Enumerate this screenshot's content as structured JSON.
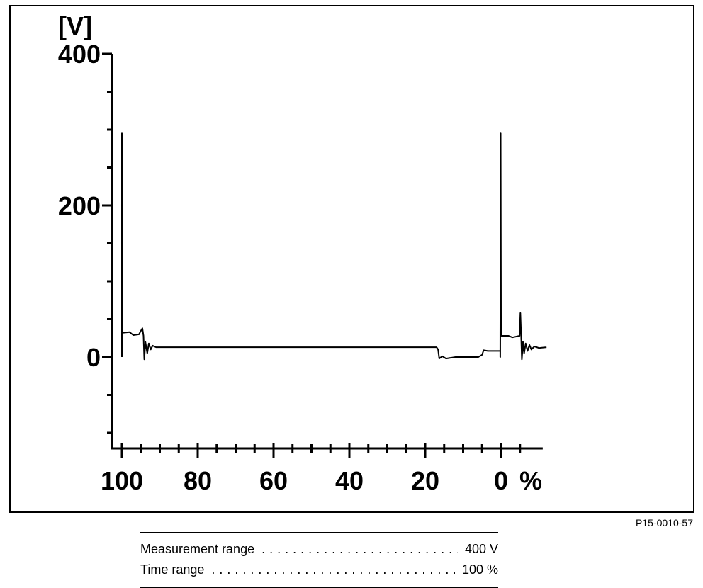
{
  "figure_id": "P15-0010-57",
  "settings": [
    {
      "label": "Measurement range",
      "value": "400 V"
    },
    {
      "label": "Time range",
      "value": "100 %"
    }
  ],
  "chart_data": {
    "type": "line",
    "y_unit_label": "[V]",
    "x_unit_label": "%",
    "x_tick_labels": [
      "100",
      "80",
      "60",
      "40",
      "20",
      "0"
    ],
    "y_tick_labels": [
      "400",
      "200",
      "0"
    ],
    "ylim": [
      -120,
      400
    ],
    "xlim": [
      100,
      -11
    ],
    "x_reversed": true,
    "grid": false,
    "series": [
      {
        "values": [
          [
            100,
            0
          ],
          [
            100,
            295
          ],
          [
            99.9,
            55
          ],
          [
            99.9,
            32
          ],
          [
            98,
            33
          ],
          [
            97,
            29
          ],
          [
            95.5,
            30
          ],
          [
            94.6,
            38
          ],
          [
            94.3,
            28
          ],
          [
            94.1,
            -3
          ],
          [
            93.8,
            20
          ],
          [
            93.3,
            5
          ],
          [
            92.9,
            18
          ],
          [
            92.4,
            10
          ],
          [
            91.9,
            15
          ],
          [
            91,
            13
          ],
          [
            89,
            13
          ],
          [
            60,
            13
          ],
          [
            30,
            13
          ],
          [
            17,
            13
          ],
          [
            16.6,
            10
          ],
          [
            16.3,
            -2
          ],
          [
            15.5,
            1
          ],
          [
            14.5,
            -2
          ],
          [
            12,
            0
          ],
          [
            6,
            0
          ],
          [
            5,
            3
          ],
          [
            4.6,
            9
          ],
          [
            3.5,
            8
          ],
          [
            0.2,
            8
          ],
          [
            0.2,
            0
          ],
          [
            0.1,
            295
          ],
          [
            0,
            52
          ],
          [
            -0.1,
            28
          ],
          [
            -2,
            28
          ],
          [
            -3,
            26
          ],
          [
            -4.9,
            28
          ],
          [
            -5.1,
            58
          ],
          [
            -5.3,
            28
          ],
          [
            -5.5,
            -3
          ],
          [
            -5.8,
            20
          ],
          [
            -6.1,
            5
          ],
          [
            -6.5,
            18
          ],
          [
            -7,
            8
          ],
          [
            -7.5,
            16
          ],
          [
            -8,
            10
          ],
          [
            -8.8,
            14
          ],
          [
            -10,
            12
          ],
          [
            -12,
            13
          ]
        ]
      }
    ]
  }
}
